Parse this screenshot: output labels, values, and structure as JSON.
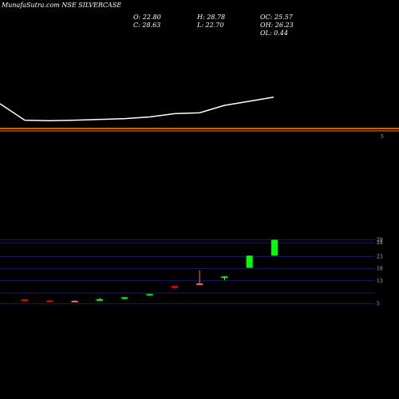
{
  "header": {
    "title": "MunafaSutra.com NSE SILVERCASE"
  },
  "ohlc": {
    "open": "O: 22.80",
    "close": "C: 28.63",
    "high": "H: 28.78",
    "low": "L: 22.70",
    "oc": "OC: 25.57",
    "oh": "OH: 26.23",
    "ol": "OL: 0.44"
  },
  "colors": {
    "background": "#000000",
    "bull": "#00ff00",
    "bear": "#ff0000",
    "doji": "#ff6666",
    "line": "#ffffff",
    "divider": "#ff8c00",
    "grid": "#1a1a66",
    "axis_text": "#bbbbbb"
  },
  "chart_data": [
    {
      "type": "line",
      "x": [
        1,
        2,
        3,
        4,
        5,
        6,
        7,
        8,
        9,
        10,
        11
      ],
      "values": [
        32,
        12,
        11.5,
        12,
        13,
        14,
        16,
        20,
        21,
        30,
        40
      ],
      "ylim": [
        0,
        100
      ],
      "grid": false,
      "right_tick_labels": [
        "5"
      ]
    },
    {
      "type": "candlestick",
      "x": [
        1,
        2,
        3,
        4,
        5,
        6,
        7,
        8,
        9,
        10,
        11
      ],
      "open": [
        6.6,
        6.2,
        6.1,
        6.2,
        7.0,
        8.3,
        11.6,
        12.5,
        14.5,
        18.3,
        22.8
      ],
      "high": [
        6.6,
        6.2,
        6.3,
        7.1,
        7.5,
        8.6,
        11.6,
        17.4,
        15.2,
        22.9,
        28.78
      ],
      "low": [
        6.0,
        5.7,
        5.8,
        6.2,
        6.7,
        8.0,
        10.5,
        12.1,
        13.7,
        18.3,
        22.7
      ],
      "close": [
        6.1,
        5.9,
        6.0,
        6.7,
        7.4,
        8.6,
        10.9,
        12.4,
        15.1,
        22.8,
        28.63
      ],
      "ylim": [
        4,
        30
      ],
      "grid": true,
      "tick_labels": [
        "5",
        "13",
        "18",
        "23",
        "28",
        "29"
      ]
    }
  ]
}
